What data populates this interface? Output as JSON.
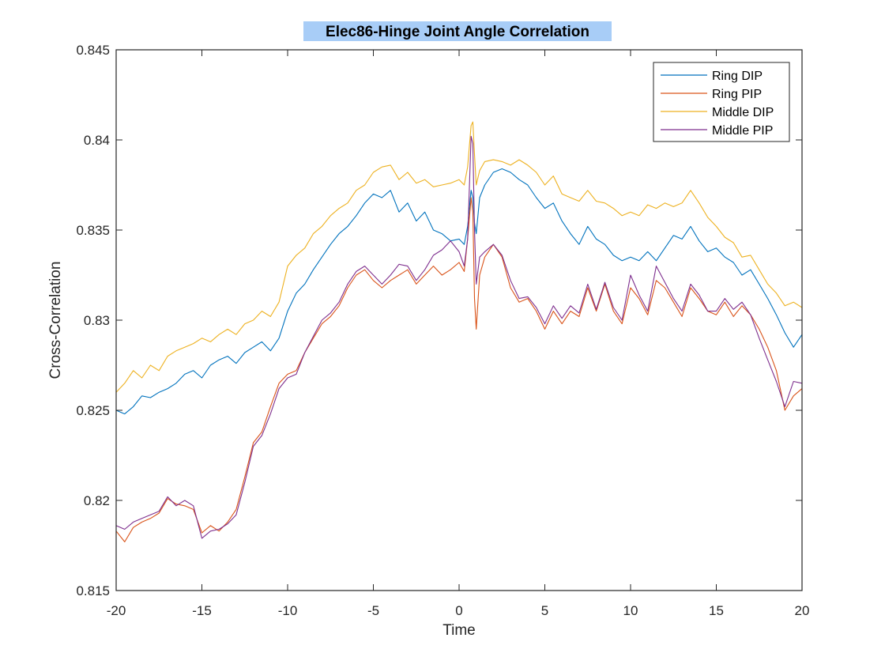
{
  "chart_data": {
    "type": "line",
    "title": "Elec86-Hinge Joint Angle Correlation",
    "xlabel": "Time",
    "ylabel": "Cross-Correlation",
    "xlim": [
      -20,
      20
    ],
    "ylim": [
      0.815,
      0.845
    ],
    "x_ticks": [
      -20,
      -15,
      -10,
      -5,
      0,
      5,
      10,
      15,
      20
    ],
    "y_ticks": [
      0.815,
      0.82,
      0.825,
      0.83,
      0.835,
      0.84,
      0.845
    ],
    "x_tick_labels": [
      "-20",
      "-15",
      "-10",
      "-5",
      "0",
      "5",
      "10",
      "15",
      "20"
    ],
    "y_tick_labels": [
      "0.815",
      "0.82",
      "0.825",
      "0.83",
      "0.835",
      "0.84",
      "0.845"
    ],
    "grid": false,
    "legend_position": "top-right",
    "title_highlight_color": "#a8cdf7",
    "series": [
      {
        "name": "Ring DIP",
        "color": "#0072BD",
        "x": [
          -20,
          -19.5,
          -19,
          -18.5,
          -18,
          -17.5,
          -17,
          -16.5,
          -16,
          -15.5,
          -15,
          -14.5,
          -14,
          -13.5,
          -13,
          -12.5,
          -12,
          -11.5,
          -11,
          -10.5,
          -10,
          -9.5,
          -9,
          -8.5,
          -8,
          -7.5,
          -7,
          -6.5,
          -6,
          -5.5,
          -5,
          -4.5,
          -4,
          -3.5,
          -3,
          -2.5,
          -2,
          -1.5,
          -1,
          -0.5,
          0,
          0.3,
          0.5,
          0.7,
          0.8,
          0.9,
          1.0,
          1.2,
          1.5,
          2,
          2.5,
          3,
          3.5,
          4,
          4.5,
          5,
          5.5,
          6,
          6.5,
          7,
          7.5,
          8,
          8.5,
          9,
          9.5,
          10,
          10.5,
          11,
          11.5,
          12,
          12.5,
          13,
          13.5,
          14,
          14.5,
          15,
          15.5,
          16,
          16.5,
          17,
          17.5,
          18,
          18.5,
          19,
          19.5,
          20
        ],
        "y": [
          0.825,
          0.8248,
          0.8252,
          0.8258,
          0.8257,
          0.826,
          0.8262,
          0.8265,
          0.827,
          0.8272,
          0.8268,
          0.8275,
          0.8278,
          0.828,
          0.8276,
          0.8282,
          0.8285,
          0.8288,
          0.8283,
          0.829,
          0.8305,
          0.8315,
          0.832,
          0.8328,
          0.8335,
          0.8342,
          0.8348,
          0.8352,
          0.8358,
          0.8365,
          0.837,
          0.8368,
          0.8372,
          0.836,
          0.8365,
          0.8355,
          0.836,
          0.835,
          0.8348,
          0.8344,
          0.8345,
          0.8342,
          0.8352,
          0.8372,
          0.8368,
          0.8354,
          0.8348,
          0.8368,
          0.8375,
          0.8382,
          0.8384,
          0.8382,
          0.8378,
          0.8375,
          0.8368,
          0.8362,
          0.8365,
          0.8355,
          0.8348,
          0.8342,
          0.8352,
          0.8345,
          0.8342,
          0.8336,
          0.8333,
          0.8335,
          0.8333,
          0.8338,
          0.8333,
          0.834,
          0.8347,
          0.8345,
          0.8352,
          0.8344,
          0.8338,
          0.834,
          0.8335,
          0.8332,
          0.8325,
          0.8328,
          0.832,
          0.8312,
          0.8303,
          0.8293,
          0.8285,
          0.8292
        ]
      },
      {
        "name": "Ring PIP",
        "color": "#D95319",
        "x": [
          -20,
          -19.5,
          -19,
          -18.5,
          -18,
          -17.5,
          -17,
          -16.5,
          -16,
          -15.5,
          -15,
          -14.5,
          -14,
          -13.5,
          -13,
          -12.5,
          -12,
          -11.5,
          -11,
          -10.5,
          -10,
          -9.5,
          -9,
          -8.5,
          -8,
          -7.5,
          -7,
          -6.5,
          -6,
          -5.5,
          -5,
          -4.5,
          -4,
          -3.5,
          -3,
          -2.5,
          -2,
          -1.5,
          -1,
          -0.5,
          0,
          0.3,
          0.5,
          0.7,
          0.8,
          0.9,
          1.0,
          1.2,
          1.5,
          2,
          2.5,
          3,
          3.5,
          4,
          4.5,
          5,
          5.5,
          6,
          6.5,
          7,
          7.5,
          8,
          8.5,
          9,
          9.5,
          10,
          10.5,
          11,
          11.5,
          12,
          12.5,
          13,
          13.5,
          14,
          14.5,
          15,
          15.5,
          16,
          16.5,
          17,
          17.5,
          18,
          18.5,
          19,
          19.5,
          20
        ],
        "y": [
          0.8183,
          0.8177,
          0.8185,
          0.8188,
          0.819,
          0.8193,
          0.8201,
          0.8198,
          0.8197,
          0.8195,
          0.8182,
          0.8186,
          0.8183,
          0.8188,
          0.8195,
          0.8213,
          0.8232,
          0.8238,
          0.8252,
          0.8265,
          0.827,
          0.8272,
          0.8282,
          0.829,
          0.8298,
          0.8302,
          0.8308,
          0.8318,
          0.8325,
          0.8328,
          0.8322,
          0.8318,
          0.8322,
          0.8325,
          0.8328,
          0.832,
          0.8325,
          0.833,
          0.8325,
          0.8328,
          0.8332,
          0.8327,
          0.8345,
          0.8368,
          0.836,
          0.8312,
          0.8295,
          0.8325,
          0.8335,
          0.8342,
          0.8335,
          0.8318,
          0.831,
          0.8312,
          0.8305,
          0.8295,
          0.8305,
          0.8298,
          0.8305,
          0.8302,
          0.8318,
          0.8305,
          0.832,
          0.8305,
          0.8298,
          0.8318,
          0.8312,
          0.8303,
          0.8322,
          0.8318,
          0.831,
          0.8302,
          0.8318,
          0.8312,
          0.8305,
          0.8303,
          0.831,
          0.8302,
          0.8308,
          0.8303,
          0.8295,
          0.8285,
          0.8272,
          0.825,
          0.8258,
          0.8262
        ]
      },
      {
        "name": "Middle DIP",
        "color": "#EDB120",
        "x": [
          -20,
          -19.5,
          -19,
          -18.5,
          -18,
          -17.5,
          -17,
          -16.5,
          -16,
          -15.5,
          -15,
          -14.5,
          -14,
          -13.5,
          -13,
          -12.5,
          -12,
          -11.5,
          -11,
          -10.5,
          -10,
          -9.5,
          -9,
          -8.5,
          -8,
          -7.5,
          -7,
          -6.5,
          -6,
          -5.5,
          -5,
          -4.5,
          -4,
          -3.5,
          -3,
          -2.5,
          -2,
          -1.5,
          -1,
          -0.5,
          0,
          0.3,
          0.5,
          0.7,
          0.8,
          0.9,
          1.0,
          1.2,
          1.5,
          2,
          2.5,
          3,
          3.5,
          4,
          4.5,
          5,
          5.5,
          6,
          6.5,
          7,
          7.5,
          8,
          8.5,
          9,
          9.5,
          10,
          10.5,
          11,
          11.5,
          12,
          12.5,
          13,
          13.5,
          14,
          14.5,
          15,
          15.5,
          16,
          16.5,
          17,
          17.5,
          18,
          18.5,
          19,
          19.5,
          20
        ],
        "y": [
          0.826,
          0.8265,
          0.8272,
          0.8268,
          0.8275,
          0.8272,
          0.828,
          0.8283,
          0.8285,
          0.8287,
          0.829,
          0.8288,
          0.8292,
          0.8295,
          0.8292,
          0.8298,
          0.83,
          0.8305,
          0.8302,
          0.831,
          0.833,
          0.8336,
          0.834,
          0.8348,
          0.8352,
          0.8358,
          0.8362,
          0.8365,
          0.8372,
          0.8375,
          0.8382,
          0.8385,
          0.8386,
          0.8378,
          0.8382,
          0.8376,
          0.8378,
          0.8374,
          0.8375,
          0.8376,
          0.8378,
          0.8375,
          0.8385,
          0.8408,
          0.841,
          0.8392,
          0.8375,
          0.8383,
          0.8388,
          0.8389,
          0.8388,
          0.8386,
          0.8389,
          0.8386,
          0.8382,
          0.8375,
          0.838,
          0.837,
          0.8368,
          0.8366,
          0.8372,
          0.8366,
          0.8365,
          0.8362,
          0.8358,
          0.836,
          0.8358,
          0.8364,
          0.8362,
          0.8365,
          0.8363,
          0.8365,
          0.8372,
          0.8365,
          0.8357,
          0.8352,
          0.8346,
          0.8343,
          0.8335,
          0.8336,
          0.8328,
          0.832,
          0.8315,
          0.8308,
          0.831,
          0.8307
        ]
      },
      {
        "name": "Middle PIP",
        "color": "#7E2F8E",
        "x": [
          -20,
          -19.5,
          -19,
          -18.5,
          -18,
          -17.5,
          -17,
          -16.5,
          -16,
          -15.5,
          -15,
          -14.5,
          -14,
          -13.5,
          -13,
          -12.5,
          -12,
          -11.5,
          -11,
          -10.5,
          -10,
          -9.5,
          -9,
          -8.5,
          -8,
          -7.5,
          -7,
          -6.5,
          -6,
          -5.5,
          -5,
          -4.5,
          -4,
          -3.5,
          -3,
          -2.5,
          -2,
          -1.5,
          -1,
          -0.5,
          0,
          0.3,
          0.5,
          0.7,
          0.8,
          0.9,
          1.0,
          1.2,
          1.5,
          2,
          2.5,
          3,
          3.5,
          4,
          4.5,
          5,
          5.5,
          6,
          6.5,
          7,
          7.5,
          8,
          8.5,
          9,
          9.5,
          10,
          10.5,
          11,
          11.5,
          12,
          12.5,
          13,
          13.5,
          14,
          14.5,
          15,
          15.5,
          16,
          16.5,
          17,
          17.5,
          18,
          18.5,
          19,
          19.5,
          20
        ],
        "y": [
          0.8186,
          0.8184,
          0.8188,
          0.819,
          0.8192,
          0.8194,
          0.8202,
          0.8197,
          0.82,
          0.8197,
          0.8179,
          0.8183,
          0.8184,
          0.8187,
          0.8192,
          0.821,
          0.823,
          0.8236,
          0.8248,
          0.8262,
          0.8268,
          0.827,
          0.8282,
          0.8291,
          0.83,
          0.8304,
          0.831,
          0.832,
          0.8327,
          0.833,
          0.8325,
          0.832,
          0.8325,
          0.8331,
          0.833,
          0.8322,
          0.8328,
          0.8336,
          0.8339,
          0.8344,
          0.8338,
          0.833,
          0.8345,
          0.8402,
          0.8398,
          0.835,
          0.832,
          0.8335,
          0.8338,
          0.8342,
          0.8336,
          0.8322,
          0.8312,
          0.8313,
          0.8307,
          0.8298,
          0.8308,
          0.8301,
          0.8308,
          0.8304,
          0.832,
          0.8306,
          0.8321,
          0.8307,
          0.83,
          0.8325,
          0.8314,
          0.8305,
          0.833,
          0.8321,
          0.8312,
          0.8305,
          0.832,
          0.8314,
          0.8305,
          0.8305,
          0.8312,
          0.8306,
          0.831,
          0.8303,
          0.829,
          0.8278,
          0.8266,
          0.8252,
          0.8266,
          0.8265
        ]
      }
    ]
  }
}
